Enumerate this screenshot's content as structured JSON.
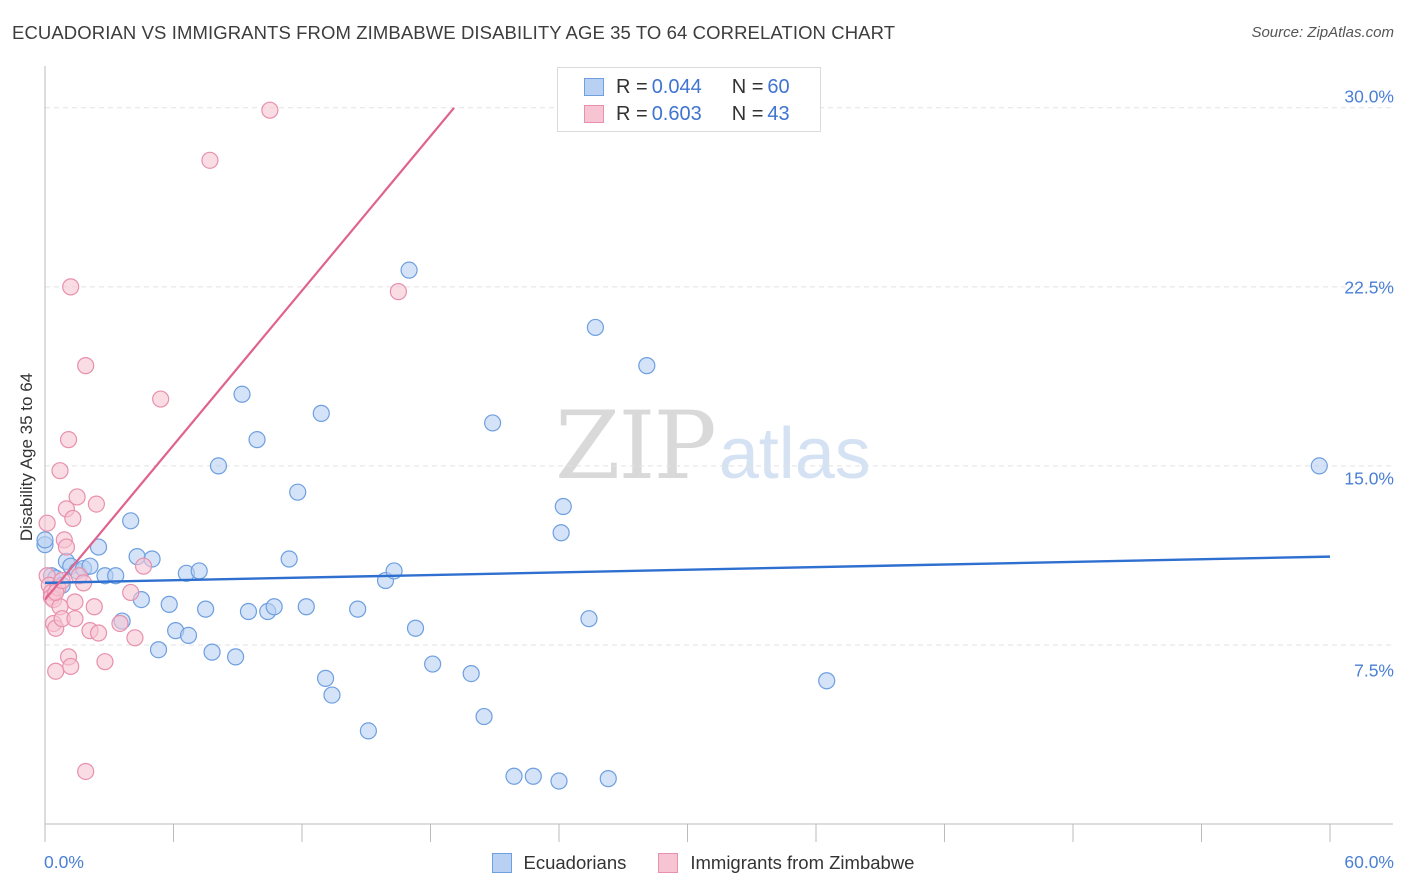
{
  "title": "ECUADORIAN VS IMMIGRANTS FROM ZIMBABWE DISABILITY AGE 35 TO 64 CORRELATION CHART",
  "source": "Source: ZipAtlas.com",
  "watermark": {
    "zip": "ZIP",
    "atlas": "atlas"
  },
  "legend": {
    "rows": [
      {
        "r_key": "R = ",
        "r_value": "0.044",
        "n_key": "N = ",
        "n_value": "60"
      },
      {
        "r_key": "R = ",
        "r_value": "0.603",
        "n_key": "N = ",
        "n_value": "43"
      }
    ]
  },
  "colors": {
    "blue_fill": "#b8d0f2",
    "blue_stroke": "#6e9fe0",
    "blue_line": "#2f6fd0",
    "pink_fill": "#f7c4d4",
    "pink_stroke": "#e890ad",
    "pink_line": "#e0628e",
    "axis_text": "#4a7fd4",
    "grid": "#e2e2e2"
  },
  "chart_data": {
    "type": "scatter",
    "title": "ECUADORIAN VS IMMIGRANTS FROM ZIMBABWE DISABILITY AGE 35 TO 64 CORRELATION CHART",
    "xlabel": "",
    "ylabel": "Disability Age 35 to 64",
    "xlim": [
      0,
      60
    ],
    "ylim": [
      0,
      31.5
    ],
    "x_tick_labels": [
      "0.0%",
      "60.0%"
    ],
    "y_ticks": [
      7.5,
      15.0,
      22.5,
      30.0
    ],
    "y_tick_labels": [
      "7.5%",
      "15.0%",
      "22.5%",
      "30.0%"
    ],
    "legend_position": "top-center",
    "series": [
      {
        "name": "Ecuadorians",
        "color": "#b8d0f2",
        "r": 0.044,
        "n": 60,
        "trend": {
          "x": [
            0,
            60
          ],
          "y": [
            10.1,
            11.2
          ]
        },
        "points": [
          [
            0.0,
            11.7
          ],
          [
            0.3,
            10.4
          ],
          [
            0.5,
            10.3
          ],
          [
            0.8,
            10.0
          ],
          [
            1.0,
            11.0
          ],
          [
            1.2,
            10.8
          ],
          [
            1.5,
            10.6
          ],
          [
            1.8,
            10.7
          ],
          [
            2.1,
            10.8
          ],
          [
            2.5,
            11.6
          ],
          [
            2.8,
            10.4
          ],
          [
            3.3,
            10.4
          ],
          [
            3.6,
            8.5
          ],
          [
            4.0,
            12.7
          ],
          [
            4.3,
            11.2
          ],
          [
            4.5,
            9.4
          ],
          [
            5.0,
            11.1
          ],
          [
            5.8,
            9.2
          ],
          [
            6.1,
            8.1
          ],
          [
            6.7,
            7.9
          ],
          [
            5.3,
            7.3
          ],
          [
            6.6,
            10.5
          ],
          [
            7.2,
            10.6
          ],
          [
            7.5,
            9.0
          ],
          [
            7.8,
            7.2
          ],
          [
            8.1,
            15.0
          ],
          [
            8.9,
            7.0
          ],
          [
            9.2,
            18.0
          ],
          [
            9.5,
            8.9
          ],
          [
            9.9,
            16.1
          ],
          [
            10.4,
            8.9
          ],
          [
            10.7,
            9.1
          ],
          [
            11.4,
            11.1
          ],
          [
            11.8,
            13.9
          ],
          [
            12.2,
            9.1
          ],
          [
            12.9,
            17.2
          ],
          [
            13.1,
            6.1
          ],
          [
            13.4,
            5.4
          ],
          [
            14.6,
            9.0
          ],
          [
            15.1,
            3.9
          ],
          [
            15.9,
            10.2
          ],
          [
            16.3,
            10.6
          ],
          [
            17.0,
            23.2
          ],
          [
            17.3,
            8.2
          ],
          [
            18.1,
            6.7
          ],
          [
            19.9,
            6.3
          ],
          [
            20.5,
            4.5
          ],
          [
            20.9,
            16.8
          ],
          [
            21.9,
            2.0
          ],
          [
            22.8,
            2.0
          ],
          [
            24.0,
            1.8
          ],
          [
            24.1,
            12.2
          ],
          [
            24.2,
            13.3
          ],
          [
            25.4,
            8.6
          ],
          [
            25.7,
            20.8
          ],
          [
            26.3,
            1.9
          ],
          [
            28.1,
            19.2
          ],
          [
            36.5,
            6.0
          ],
          [
            59.5,
            15.0
          ],
          [
            0.0,
            11.9
          ]
        ]
      },
      {
        "name": "Immigrants from Zimbabwe",
        "color": "#f7c4d4",
        "r": 0.603,
        "n": 43,
        "trend": {
          "x": [
            0,
            19.1
          ],
          "y": [
            9.4,
            30.0
          ]
        },
        "points": [
          [
            0.1,
            12.6
          ],
          [
            0.1,
            10.4
          ],
          [
            0.2,
            10.0
          ],
          [
            0.3,
            9.7
          ],
          [
            0.3,
            9.5
          ],
          [
            0.4,
            9.4
          ],
          [
            0.4,
            8.4
          ],
          [
            0.5,
            6.4
          ],
          [
            0.5,
            8.2
          ],
          [
            0.6,
            9.9
          ],
          [
            0.7,
            9.1
          ],
          [
            0.7,
            14.8
          ],
          [
            0.8,
            8.6
          ],
          [
            0.9,
            11.9
          ],
          [
            1.0,
            11.6
          ],
          [
            1.0,
            13.2
          ],
          [
            1.1,
            16.1
          ],
          [
            1.1,
            7.0
          ],
          [
            1.2,
            6.6
          ],
          [
            1.2,
            22.5
          ],
          [
            1.3,
            12.8
          ],
          [
            1.4,
            9.3
          ],
          [
            1.4,
            8.6
          ],
          [
            1.5,
            13.7
          ],
          [
            1.6,
            10.4
          ],
          [
            1.8,
            10.1
          ],
          [
            1.9,
            19.2
          ],
          [
            1.9,
            2.2
          ],
          [
            2.1,
            8.1
          ],
          [
            2.3,
            9.1
          ],
          [
            2.4,
            13.4
          ],
          [
            2.5,
            8.0
          ],
          [
            2.8,
            6.8
          ],
          [
            3.5,
            8.4
          ],
          [
            4.0,
            9.7
          ],
          [
            4.2,
            7.8
          ],
          [
            4.6,
            10.8
          ],
          [
            5.4,
            17.8
          ],
          [
            7.7,
            27.8
          ],
          [
            10.5,
            29.9
          ],
          [
            16.5,
            22.3
          ],
          [
            0.5,
            9.7
          ],
          [
            0.8,
            10.2
          ]
        ]
      }
    ]
  },
  "bottom_legend": {
    "items": [
      {
        "label": "Ecuadorians"
      },
      {
        "label": "Immigrants from Zimbabwe"
      }
    ]
  }
}
